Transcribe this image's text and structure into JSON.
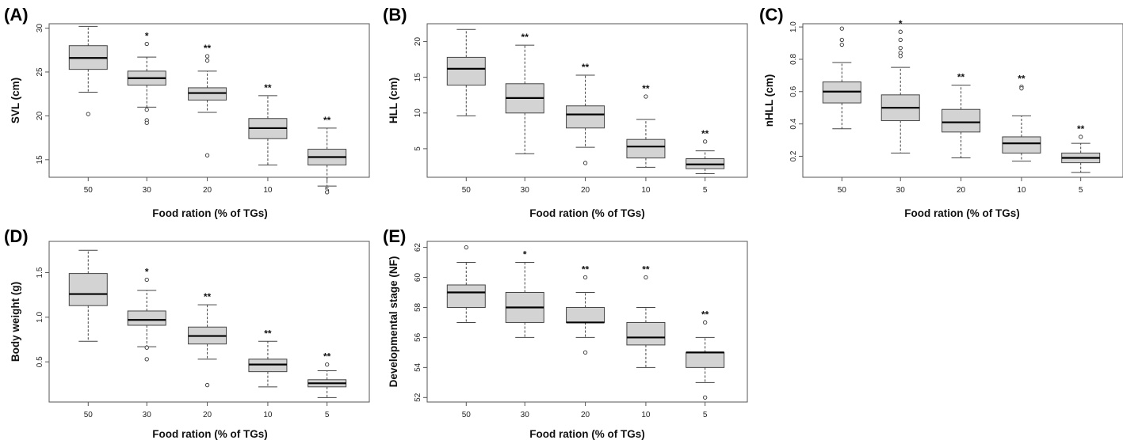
{
  "chart_data": [
    {
      "type": "boxplot",
      "panel_label": "(A)",
      "xlabel": "Food ration (% of TGs)",
      "ylabel": "SVL (cm)",
      "categories": [
        "50",
        "30",
        "20",
        "10",
        "5"
      ],
      "ylim": [
        13,
        30.5
      ],
      "yticks": [
        "15",
        "20",
        "25",
        "30"
      ],
      "tick_values": [
        15,
        20,
        25,
        30
      ],
      "boxes": [
        {
          "category": "50",
          "whisker_low": 22.7,
          "q1": 25.3,
          "median": 26.6,
          "q3": 28.0,
          "whisker_high": 30.2,
          "outliers": [
            20.2
          ],
          "significance": ""
        },
        {
          "category": "30",
          "whisker_low": 21.0,
          "q1": 23.5,
          "median": 24.3,
          "q3": 25.1,
          "whisker_high": 26.7,
          "outliers": [
            28.2,
            20.7,
            19.5,
            19.2
          ],
          "significance": "*"
        },
        {
          "category": "20",
          "whisker_low": 20.4,
          "q1": 21.8,
          "median": 22.6,
          "q3": 23.2,
          "whisker_high": 25.1,
          "outliers": [
            26.8,
            26.3,
            15.5
          ],
          "significance": "**"
        },
        {
          "category": "10",
          "whisker_low": 14.4,
          "q1": 17.4,
          "median": 18.6,
          "q3": 19.7,
          "whisker_high": 22.3,
          "outliers": [],
          "significance": "**"
        },
        {
          "category": "5",
          "whisker_low": 12.0,
          "q1": 14.4,
          "median": 15.3,
          "q3": 16.2,
          "whisker_high": 18.6,
          "outliers": [
            11.3
          ],
          "significance": "**"
        }
      ]
    },
    {
      "type": "boxplot",
      "panel_label": "(B)",
      "xlabel": "Food ration (% of TGs)",
      "ylabel": "HLL (cm)",
      "categories": [
        "50",
        "30",
        "20",
        "10",
        "5"
      ],
      "ylim": [
        1,
        22.5
      ],
      "yticks": [
        "5",
        "10",
        "15",
        "20"
      ],
      "tick_values": [
        5,
        10,
        15,
        20
      ],
      "boxes": [
        {
          "category": "50",
          "whisker_low": 9.6,
          "q1": 13.9,
          "median": 16.2,
          "q3": 17.8,
          "whisker_high": 21.7,
          "outliers": [],
          "significance": ""
        },
        {
          "category": "30",
          "whisker_low": 4.3,
          "q1": 10.0,
          "median": 12.1,
          "q3": 14.1,
          "whisker_high": 19.5,
          "outliers": [],
          "significance": "**"
        },
        {
          "category": "20",
          "whisker_low": 5.2,
          "q1": 7.9,
          "median": 9.8,
          "q3": 11.0,
          "whisker_high": 15.3,
          "outliers": [
            3.0
          ],
          "significance": "**"
        },
        {
          "category": "10",
          "whisker_low": 2.4,
          "q1": 3.7,
          "median": 5.3,
          "q3": 6.3,
          "whisker_high": 9.1,
          "outliers": [
            12.3
          ],
          "significance": "**"
        },
        {
          "category": "5",
          "whisker_low": 1.5,
          "q1": 2.2,
          "median": 2.8,
          "q3": 3.6,
          "whisker_high": 4.7,
          "outliers": [
            6.0
          ],
          "significance": "**"
        }
      ]
    },
    {
      "type": "boxplot",
      "panel_label": "(C)",
      "xlabel": "Food ration (% of TGs)",
      "ylabel": "nHLL (cm)",
      "categories": [
        "50",
        "30",
        "20",
        "10",
        "5"
      ],
      "ylim": [
        0.07,
        1.02
      ],
      "yticks": [
        "0.2",
        "0.4",
        "0.6",
        "0.8",
        "1.0"
      ],
      "tick_values": [
        0.2,
        0.4,
        0.6,
        0.8,
        1.0
      ],
      "boxes": [
        {
          "category": "50",
          "whisker_low": 0.37,
          "q1": 0.53,
          "median": 0.6,
          "q3": 0.66,
          "whisker_high": 0.78,
          "outliers": [
            0.99,
            0.92,
            0.89
          ],
          "significance": ""
        },
        {
          "category": "30",
          "whisker_low": 0.22,
          "q1": 0.42,
          "median": 0.5,
          "q3": 0.58,
          "whisker_high": 0.75,
          "outliers": [
            0.97,
            0.92,
            0.87,
            0.84,
            0.82
          ],
          "significance": "*"
        },
        {
          "category": "20",
          "whisker_low": 0.19,
          "q1": 0.35,
          "median": 0.41,
          "q3": 0.49,
          "whisker_high": 0.64,
          "outliers": [],
          "significance": "**"
        },
        {
          "category": "10",
          "whisker_low": 0.17,
          "q1": 0.22,
          "median": 0.28,
          "q3": 0.32,
          "whisker_high": 0.45,
          "outliers": [
            0.63,
            0.62
          ],
          "significance": "**"
        },
        {
          "category": "5",
          "whisker_low": 0.1,
          "q1": 0.16,
          "median": 0.19,
          "q3": 0.22,
          "whisker_high": 0.28,
          "outliers": [
            0.32
          ],
          "significance": "**"
        }
      ]
    },
    {
      "type": "boxplot",
      "panel_label": "(D)",
      "xlabel": "Food ration (% of TGs)",
      "ylabel": "Body weight (g)",
      "categories": [
        "50",
        "30",
        "20",
        "10",
        "5"
      ],
      "ylim": [
        0.05,
        1.85
      ],
      "yticks": [
        "0.5",
        "1.0",
        "1.5"
      ],
      "tick_values": [
        0.5,
        1.0,
        1.5
      ],
      "boxes": [
        {
          "category": "50",
          "whisker_low": 0.73,
          "q1": 1.13,
          "median": 1.26,
          "q3": 1.49,
          "whisker_high": 1.75,
          "outliers": [],
          "significance": ""
        },
        {
          "category": "30",
          "whisker_low": 0.67,
          "q1": 0.91,
          "median": 0.97,
          "q3": 1.07,
          "whisker_high": 1.3,
          "outliers": [
            1.42,
            0.66,
            0.53
          ],
          "significance": "*"
        },
        {
          "category": "20",
          "whisker_low": 0.53,
          "q1": 0.7,
          "median": 0.79,
          "q3": 0.89,
          "whisker_high": 1.14,
          "outliers": [
            0.24
          ],
          "significance": "**"
        },
        {
          "category": "10",
          "whisker_low": 0.22,
          "q1": 0.39,
          "median": 0.47,
          "q3": 0.53,
          "whisker_high": 0.73,
          "outliers": [],
          "significance": "**"
        },
        {
          "category": "5",
          "whisker_low": 0.1,
          "q1": 0.22,
          "median": 0.26,
          "q3": 0.3,
          "whisker_high": 0.4,
          "outliers": [
            0.47
          ],
          "significance": "**"
        }
      ]
    },
    {
      "type": "boxplot",
      "panel_label": "(E)",
      "xlabel": "Food ration (% of TGs)",
      "ylabel": "Developmental stage (NF)",
      "categories": [
        "50",
        "30",
        "20",
        "10",
        "5"
      ],
      "ylim": [
        51.7,
        62.4
      ],
      "yticks": [
        "52",
        "54",
        "56",
        "58",
        "60",
        "62"
      ],
      "tick_values": [
        52,
        54,
        56,
        58,
        60,
        62
      ],
      "boxes": [
        {
          "category": "50",
          "whisker_low": 57.0,
          "q1": 58.0,
          "median": 59.0,
          "q3": 59.5,
          "whisker_high": 61.0,
          "outliers": [
            62.0
          ],
          "significance": ""
        },
        {
          "category": "30",
          "whisker_low": 56.0,
          "q1": 57.0,
          "median": 58.0,
          "q3": 59.0,
          "whisker_high": 61.0,
          "outliers": [],
          "significance": "*"
        },
        {
          "category": "20",
          "whisker_low": 56.0,
          "q1": 57.0,
          "median": 57.0,
          "q3": 58.0,
          "whisker_high": 59.0,
          "outliers": [
            60.0,
            55.0
          ],
          "significance": "**"
        },
        {
          "category": "10",
          "whisker_low": 54.0,
          "q1": 55.5,
          "median": 56.0,
          "q3": 57.0,
          "whisker_high": 58.0,
          "outliers": [
            60.0
          ],
          "significance": "**"
        },
        {
          "category": "5",
          "whisker_low": 53.0,
          "q1": 54.0,
          "median": 55.0,
          "q3": 55.0,
          "whisker_high": 56.0,
          "outliers": [
            57.0,
            52.0
          ],
          "significance": "**"
        }
      ]
    }
  ]
}
